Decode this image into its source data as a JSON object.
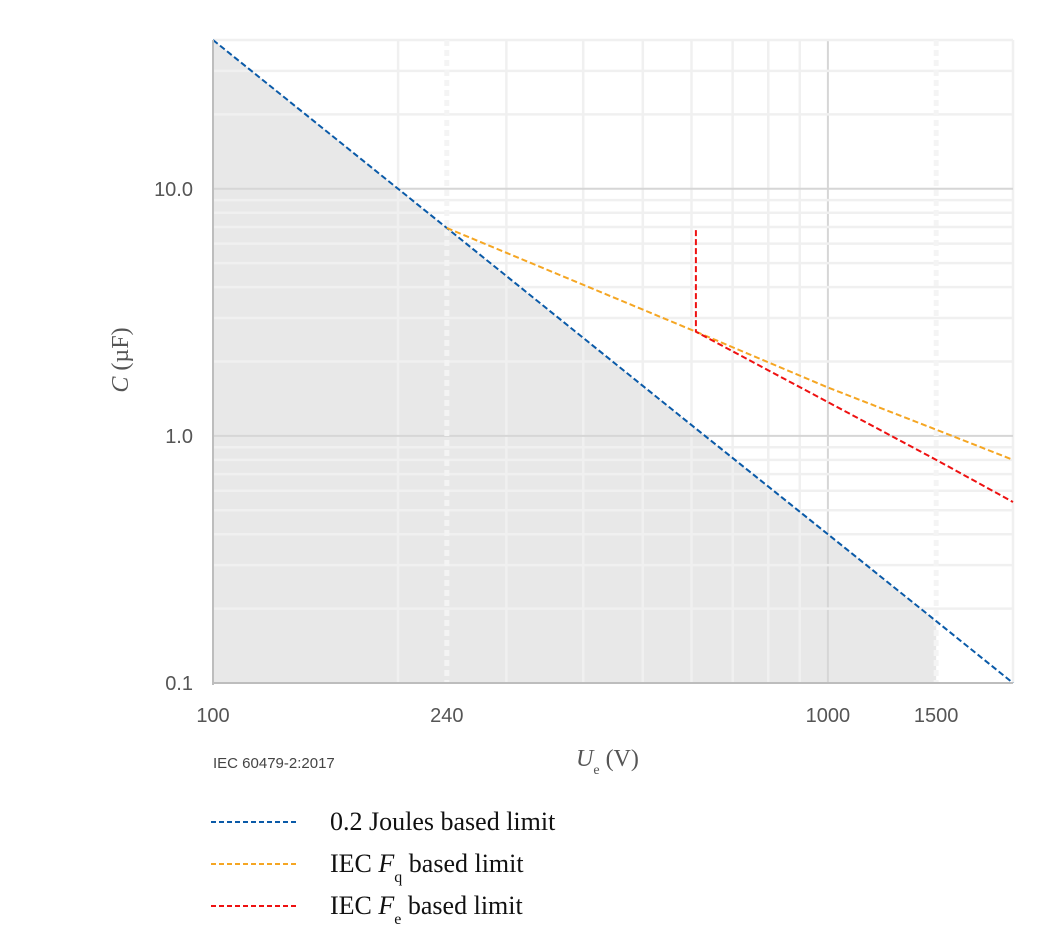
{
  "chart_data": {
    "type": "line",
    "xlabel": {
      "symbol": "U",
      "sub": "e",
      "unit": "(V)"
    },
    "ylabel": {
      "symbol": "C",
      "unit": "(µF)"
    },
    "x_scale": "log",
    "y_scale": "log",
    "xlim": [
      100,
      2000
    ],
    "ylim": [
      0.1,
      40
    ],
    "x_ticks": [
      {
        "v": 100,
        "label": "100"
      },
      {
        "v": 240,
        "label": "240"
      },
      {
        "v": 1000,
        "label": "1000"
      },
      {
        "v": 1500,
        "label": "1500"
      }
    ],
    "y_ticks": [
      {
        "v": 0.1,
        "label": "0.1"
      },
      {
        "v": 1,
        "label": "1.0"
      },
      {
        "v": 10,
        "label": "10.0"
      }
    ],
    "grid": true,
    "source_note": "IEC 60479-2:2017",
    "shaded_region": {
      "x_range": [
        100,
        1500
      ],
      "color": "#e8e8e8"
    },
    "marker_lines_x": [
      240,
      1500
    ],
    "legend_placement": "bottom",
    "series": [
      {
        "name": "0.2 Joules based limit",
        "color": "#0a5aa8",
        "x": [
          100,
          240,
          610,
          1000,
          1500,
          2000
        ],
        "y": [
          40,
          6.94,
          1.07,
          0.4,
          0.178,
          0.1
        ]
      },
      {
        "name": "IEC Fq based limit",
        "name_parts": {
          "pre": "IEC ",
          "sym": "F",
          "sub": "q",
          "post": " based limit"
        },
        "color": "#f5a623",
        "x": [
          240,
          610,
          1000,
          1500,
          2000
        ],
        "y": [
          6.94,
          2.64,
          1.57,
          1.06,
          0.8
        ]
      },
      {
        "name": "IEC Fe based limit",
        "name_parts": {
          "pre": "IEC ",
          "sym": "F",
          "sub": "e",
          "post": " based limit"
        },
        "color": "#ee1111",
        "x": [
          610,
          610,
          1000,
          1500,
          2000
        ],
        "y": [
          6.8,
          2.64,
          1.37,
          0.8,
          0.54
        ]
      }
    ]
  }
}
